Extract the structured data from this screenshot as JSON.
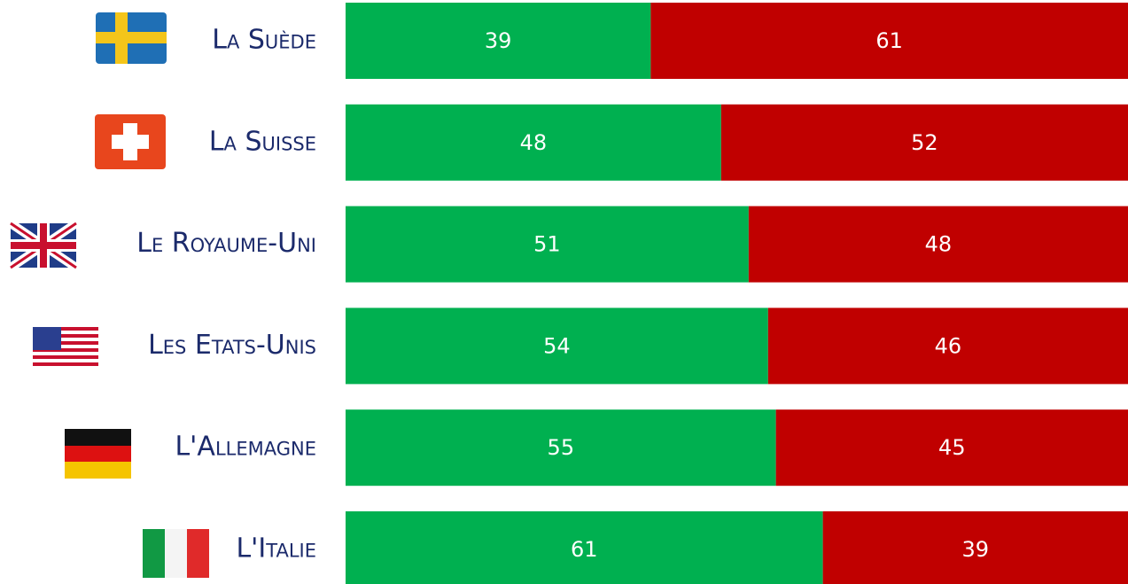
{
  "chart_data": {
    "type": "bar",
    "stacked": "percent",
    "categories": [
      "La Suède",
      "La Suisse",
      "Le Royaume-Uni",
      "Les Etats-Unis",
      "L'Allemagne",
      "L'Italie"
    ],
    "series": [
      {
        "color": "#00b050",
        "values": [
          39,
          48,
          51,
          54,
          55,
          61
        ]
      },
      {
        "color": "#c00000",
        "values": [
          61,
          52,
          48,
          46,
          45,
          39
        ]
      }
    ]
  }
}
